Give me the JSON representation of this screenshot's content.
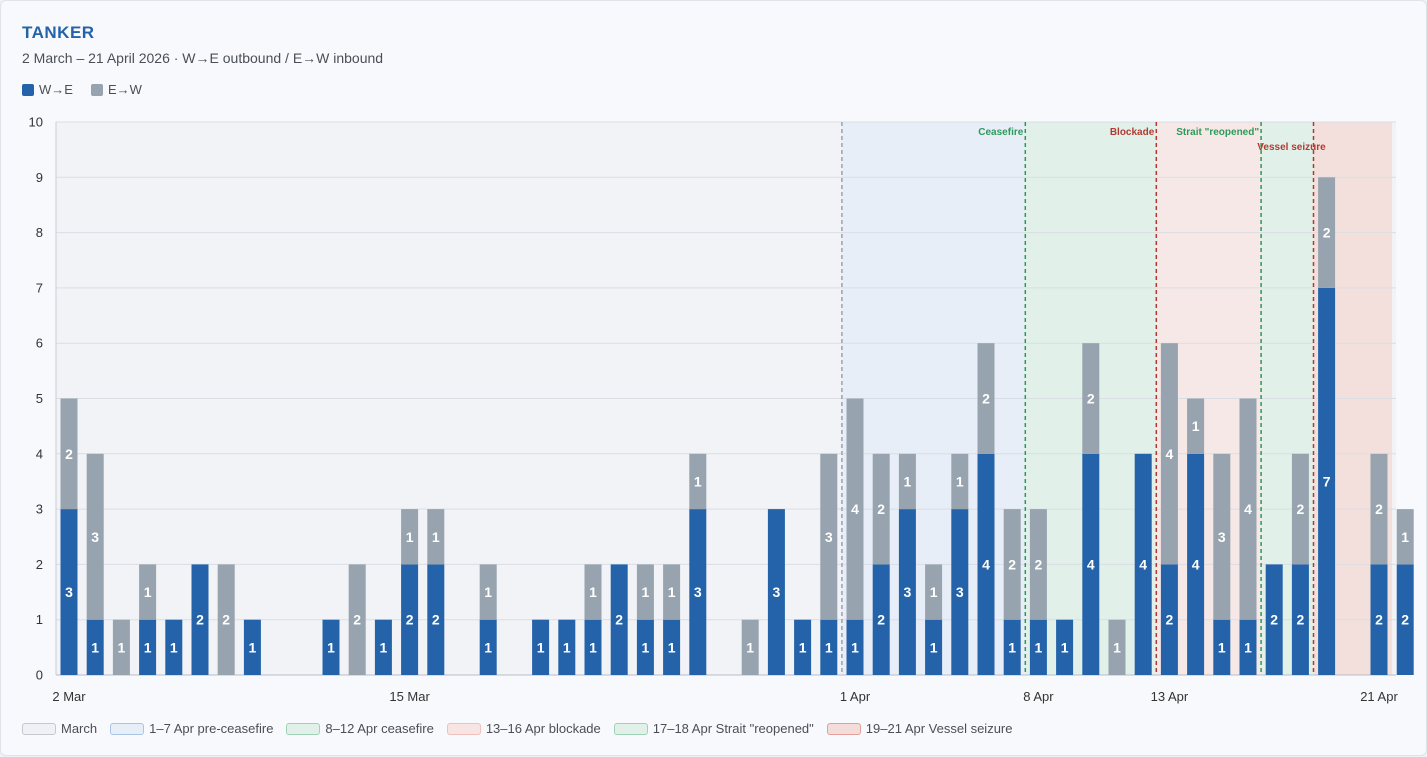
{
  "header": {
    "title": "TANKER",
    "subtitle": "2 March – 21 April 2026 · W→E outbound / E→W inbound"
  },
  "colors": {
    "we": "#2463a9",
    "ew": "#97a3ae"
  },
  "chart_data": {
    "type": "bar",
    "stacked": true,
    "ylim": [
      0,
      10
    ],
    "yticks": [
      0,
      1,
      2,
      3,
      4,
      5,
      6,
      7,
      8,
      9,
      10
    ],
    "grid": true,
    "x_tick_labels": [
      {
        "day": 0,
        "label": "2 Mar"
      },
      {
        "day": 13,
        "label": "15 Mar"
      },
      {
        "day": 30,
        "label": "1 Apr"
      },
      {
        "day": 37,
        "label": "8 Apr"
      },
      {
        "day": 42,
        "label": "13 Apr"
      },
      {
        "day": 50,
        "label": "21 Apr"
      }
    ],
    "series": [
      {
        "name": "W→E",
        "color": "#2463a9",
        "values": [
          3,
          1,
          0,
          1,
          1,
          2,
          0,
          1,
          0,
          0,
          1,
          0,
          1,
          2,
          2,
          0,
          1,
          0,
          1,
          1,
          1,
          2,
          1,
          1,
          3,
          0,
          0,
          3,
          1,
          1,
          1,
          2,
          3,
          1,
          3,
          4,
          1,
          1,
          1,
          4,
          0,
          4,
          2,
          4,
          1,
          1,
          2,
          2,
          7,
          0,
          2,
          2
        ]
      },
      {
        "name": "E→W",
        "color": "#97a3ae",
        "values": [
          2,
          3,
          1,
          1,
          0,
          0,
          2,
          0,
          0,
          0,
          0,
          2,
          0,
          1,
          1,
          0,
          1,
          0,
          0,
          0,
          1,
          0,
          1,
          1,
          1,
          0,
          1,
          0,
          0,
          3,
          4,
          2,
          1,
          1,
          1,
          2,
          2,
          2,
          0,
          2,
          1,
          0,
          4,
          1,
          3,
          4,
          0,
          2,
          2,
          0,
          2,
          1
        ]
      }
    ],
    "periods": [
      {
        "label": "March",
        "start": 0,
        "end": 30,
        "fill": "#f2f3f6",
        "border": "#c5c8ce",
        "shaded": false
      },
      {
        "label": "1–7 Apr pre-ceasefire",
        "start": 30,
        "end": 37,
        "fill": "#e7eef8",
        "border": "#a9c4e6",
        "shaded": true
      },
      {
        "label": "8–12 Apr ceasefire",
        "start": 37,
        "end": 42,
        "fill": "#e1f1e9",
        "border": "#9fd3b6",
        "shaded": true
      },
      {
        "label": "13–16 Apr blockade",
        "start": 42,
        "end": 46,
        "fill": "#f6e8e6",
        "border": "#eec1bc",
        "shaded": true
      },
      {
        "label": "17–18 Apr Strait \"reopened\"",
        "start": 46,
        "end": 48,
        "fill": "#e1f1e9",
        "border": "#9fd3b6",
        "shaded": true
      },
      {
        "label": "19–21 Apr Vessel seizure",
        "start": 48,
        "end": 51,
        "fill": "#f3e0dd",
        "border": "#e39f98",
        "shaded": true
      }
    ],
    "events": [
      {
        "label": "",
        "day": 30,
        "color": "#9aa2ad"
      },
      {
        "label": "Ceasefire",
        "day": 37,
        "color": "#2d9a5a",
        "row": 0,
        "anchor": "end"
      },
      {
        "label": "Blockade",
        "day": 42,
        "color": "#b23a30",
        "row": 0,
        "anchor": "end"
      },
      {
        "label": "Strait \"reopened\"",
        "day": 46,
        "color": "#2d9a5a",
        "row": 0,
        "anchor": "end"
      },
      {
        "label": "Vessel seizure",
        "day": 48,
        "color": "#b23a30",
        "row": 1,
        "anchor": "middle"
      }
    ]
  }
}
